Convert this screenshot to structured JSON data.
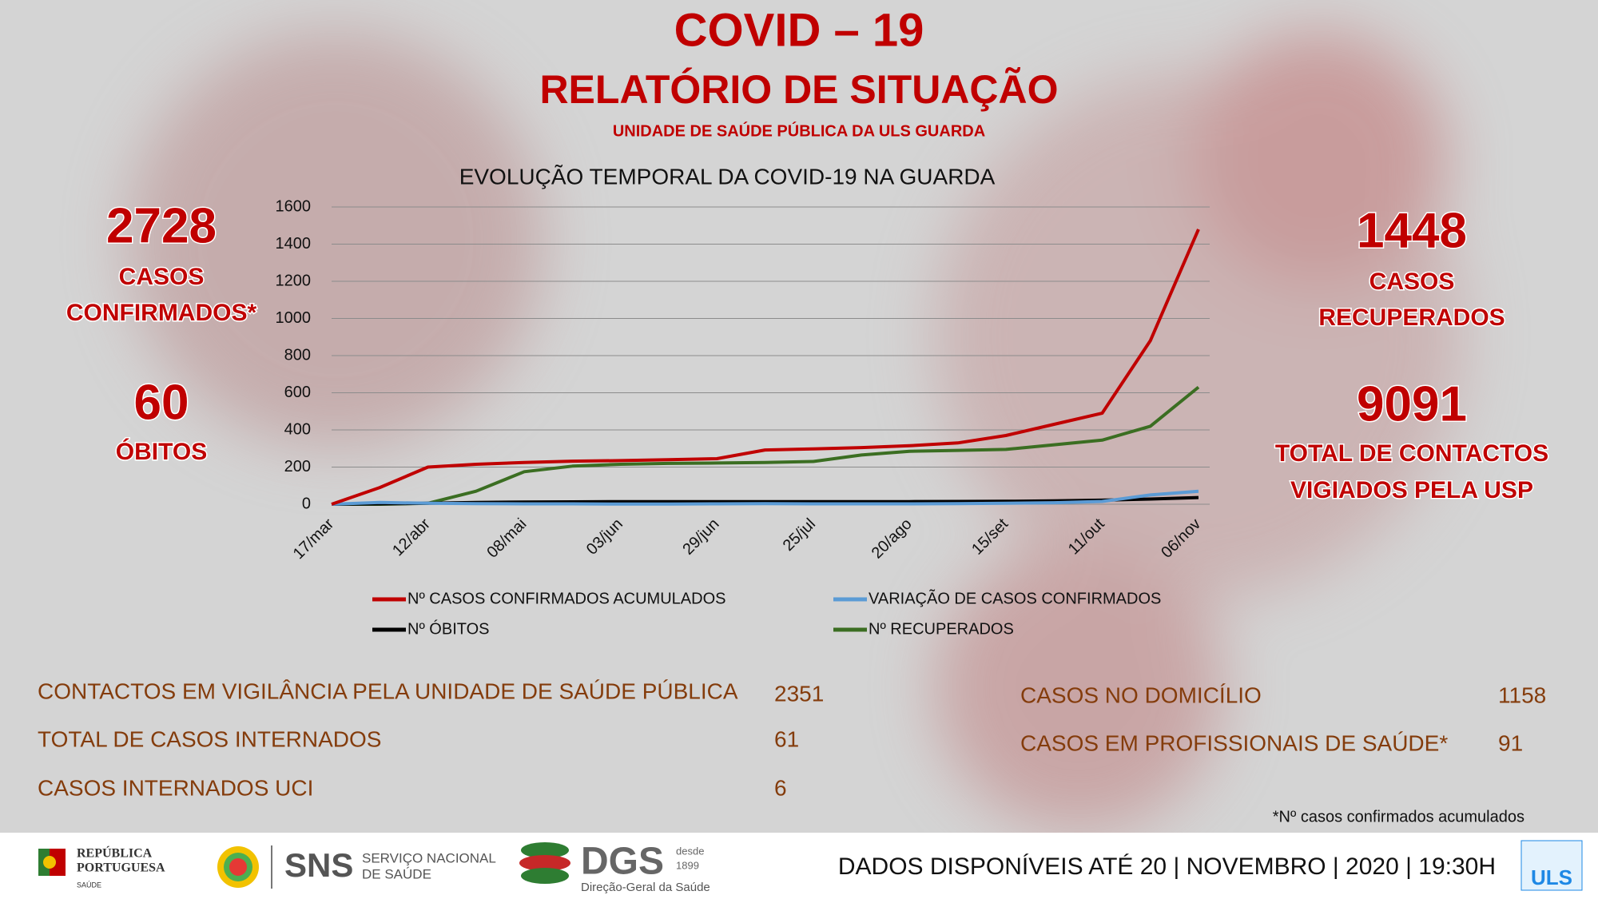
{
  "header": {
    "title": "COVID – 19",
    "subtitle": "RELATÓRIO DE SITUAÇÃO",
    "unit": "UNIDADE DE SAÚDE PÚBLICA DA ULS GUARDA"
  },
  "stats_left": [
    {
      "value": "2728",
      "label1": "CASOS",
      "label2": "CONFIRMADOS*"
    },
    {
      "value": "60",
      "label1": "ÓBITOS"
    }
  ],
  "stats_right": [
    {
      "value": "1448",
      "label1": "CASOS",
      "label2": "RECUPERADOS"
    },
    {
      "value": "9091",
      "label1": "TOTAL DE CONTACTOS",
      "label2": "VIGIADOS PELA USP"
    }
  ],
  "chart_data": {
    "type": "line",
    "title": "EVOLUÇÃO TEMPORAL DA COVID-19 NA GUARDA",
    "categories": [
      "17/mar",
      null,
      "12/abr",
      null,
      "08/mai",
      null,
      "03/jun",
      null,
      "29/jun",
      null,
      "25/jul",
      null,
      "20/ago",
      null,
      "15/set",
      null,
      "11/out",
      null,
      "06/nov"
    ],
    "series": [
      {
        "name": "Nº CASOS CONFIRMADOS ACUMULADOS",
        "color": "#c00000",
        "values": [
          0,
          90,
          200,
          215,
          225,
          232,
          235,
          240,
          245,
          292,
          298,
          305,
          315,
          330,
          370,
          430,
          490,
          880,
          1480
        ]
      },
      {
        "name": "VARIAÇÃO DE CASOS CONFIRMADOS",
        "color": "#5b9bd5",
        "values": [
          0,
          10,
          5,
          3,
          2,
          2,
          1,
          1,
          2,
          3,
          2,
          2,
          2,
          3,
          5,
          8,
          15,
          50,
          70
        ]
      },
      {
        "name": "Nº ÓBITOS",
        "color": "#000000",
        "values": [
          0,
          2,
          5,
          10,
          12,
          13,
          14,
          14,
          14,
          14,
          14,
          14,
          14,
          15,
          16,
          18,
          22,
          28,
          36
        ]
      },
      {
        "name": "Nº RECUPERADOS",
        "color": "#3b6e22",
        "values": [
          0,
          0,
          5,
          70,
          175,
          205,
          215,
          220,
          222,
          225,
          230,
          265,
          285,
          290,
          295,
          320,
          345,
          420,
          630
        ]
      }
    ],
    "ylim": [
      0,
      1600
    ],
    "yticks": [
      0,
      200,
      400,
      600,
      800,
      1000,
      1200,
      1400,
      1600
    ],
    "grid": true,
    "legend": "bottom"
  },
  "table_left": [
    [
      "CONTACTOS EM VIGILÂNCIA PELA UNIDADE DE SAÚDE PÚBLICA",
      "2351"
    ],
    [
      "TOTAL DE CASOS INTERNADOS",
      "61"
    ],
    [
      "CASOS INTERNADOS UCI",
      "6"
    ]
  ],
  "table_right": [
    [
      "CASOS NO DOMICÍLIO",
      "1158"
    ],
    [
      "CASOS EM PROFISSIONAIS DE SAÚDE*",
      "91"
    ]
  ],
  "footnote": "*Nº casos confirmados acumulados",
  "footer": {
    "rp1": "REPÚBLICA",
    "rp2": "PORTUGUESA",
    "rp3": "SAÚDE",
    "sns": "SNS",
    "sns1": "SERVIÇO NACIONAL",
    "sns2": "DE SAÚDE",
    "dgs": "DGS",
    "dgs1": "desde",
    "dgs2": "1899",
    "dgs3": "Direção-Geral da Saúde",
    "date": "DADOS DISPONÍVEIS ATÉ 20 | NOVEMBRO | 2020 | 19:30H",
    "uls": "ULS"
  }
}
